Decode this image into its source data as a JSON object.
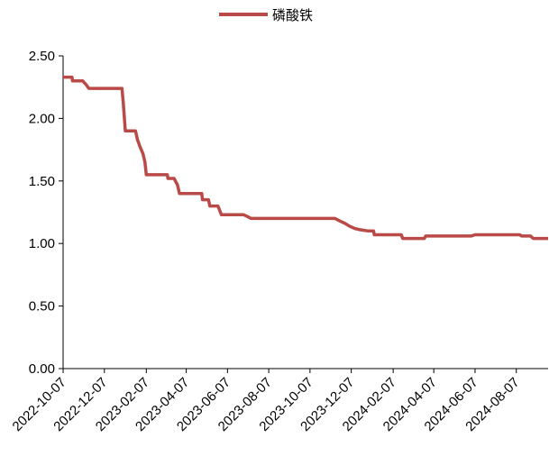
{
  "chart_data": {
    "type": "line",
    "title": "",
    "xlabel": "",
    "ylabel": "",
    "ylim": [
      0,
      2.5
    ],
    "y_ticks": [
      "0.00",
      "0.50",
      "1.00",
      "1.50",
      "2.00",
      "2.50"
    ],
    "x_ticks": [
      "2022-10-07",
      "2022-12-07",
      "2023-02-07",
      "2023-04-07",
      "2023-06-07",
      "2023-08-07",
      "2023-10-07",
      "2023-12-07",
      "2024-02-07",
      "2024-04-07",
      "2024-06-07",
      "2024-08-07"
    ],
    "xlim": [
      "2022-10-07",
      "2024-09-23"
    ],
    "grid": false,
    "legend_position": "top-center",
    "series": [
      {
        "name": "磷酸铁",
        "color": "#b94a48",
        "points": [
          [
            "2022-10-07",
            2.33
          ],
          [
            "2022-10-20",
            2.33
          ],
          [
            "2022-10-21",
            2.3
          ],
          [
            "2022-11-05",
            2.3
          ],
          [
            "2022-11-10",
            2.27
          ],
          [
            "2022-11-14",
            2.24
          ],
          [
            "2023-01-02",
            2.24
          ],
          [
            "2023-01-04",
            2.12
          ],
          [
            "2023-01-07",
            1.9
          ],
          [
            "2023-01-22",
            1.9
          ],
          [
            "2023-01-25",
            1.83
          ],
          [
            "2023-01-29",
            1.77
          ],
          [
            "2023-02-02",
            1.72
          ],
          [
            "2023-02-05",
            1.65
          ],
          [
            "2023-02-07",
            1.55
          ],
          [
            "2023-03-10",
            1.55
          ],
          [
            "2023-03-11",
            1.52
          ],
          [
            "2023-03-20",
            1.52
          ],
          [
            "2023-03-25",
            1.47
          ],
          [
            "2023-03-28",
            1.4
          ],
          [
            "2023-04-30",
            1.4
          ],
          [
            "2023-05-01",
            1.35
          ],
          [
            "2023-05-10",
            1.35
          ],
          [
            "2023-05-12",
            1.3
          ],
          [
            "2023-05-24",
            1.3
          ],
          [
            "2023-05-29",
            1.23
          ],
          [
            "2023-07-01",
            1.23
          ],
          [
            "2023-07-05",
            1.22
          ],
          [
            "2023-07-12",
            1.2
          ],
          [
            "2023-11-13",
            1.2
          ],
          [
            "2023-11-20",
            1.18
          ],
          [
            "2023-11-28",
            1.16
          ],
          [
            "2023-12-04",
            1.14
          ],
          [
            "2023-12-12",
            1.12
          ],
          [
            "2023-12-20",
            1.11
          ],
          [
            "2024-01-01",
            1.1
          ],
          [
            "2024-01-09",
            1.1
          ],
          [
            "2024-01-10",
            1.07
          ],
          [
            "2024-02-19",
            1.07
          ],
          [
            "2024-02-21",
            1.04
          ],
          [
            "2024-03-24",
            1.04
          ],
          [
            "2024-03-26",
            1.06
          ],
          [
            "2024-06-01",
            1.06
          ],
          [
            "2024-06-07",
            1.07
          ],
          [
            "2024-08-12",
            1.07
          ],
          [
            "2024-08-15",
            1.06
          ],
          [
            "2024-08-28",
            1.06
          ],
          [
            "2024-09-01",
            1.04
          ],
          [
            "2024-09-23",
            1.04
          ]
        ]
      }
    ]
  }
}
